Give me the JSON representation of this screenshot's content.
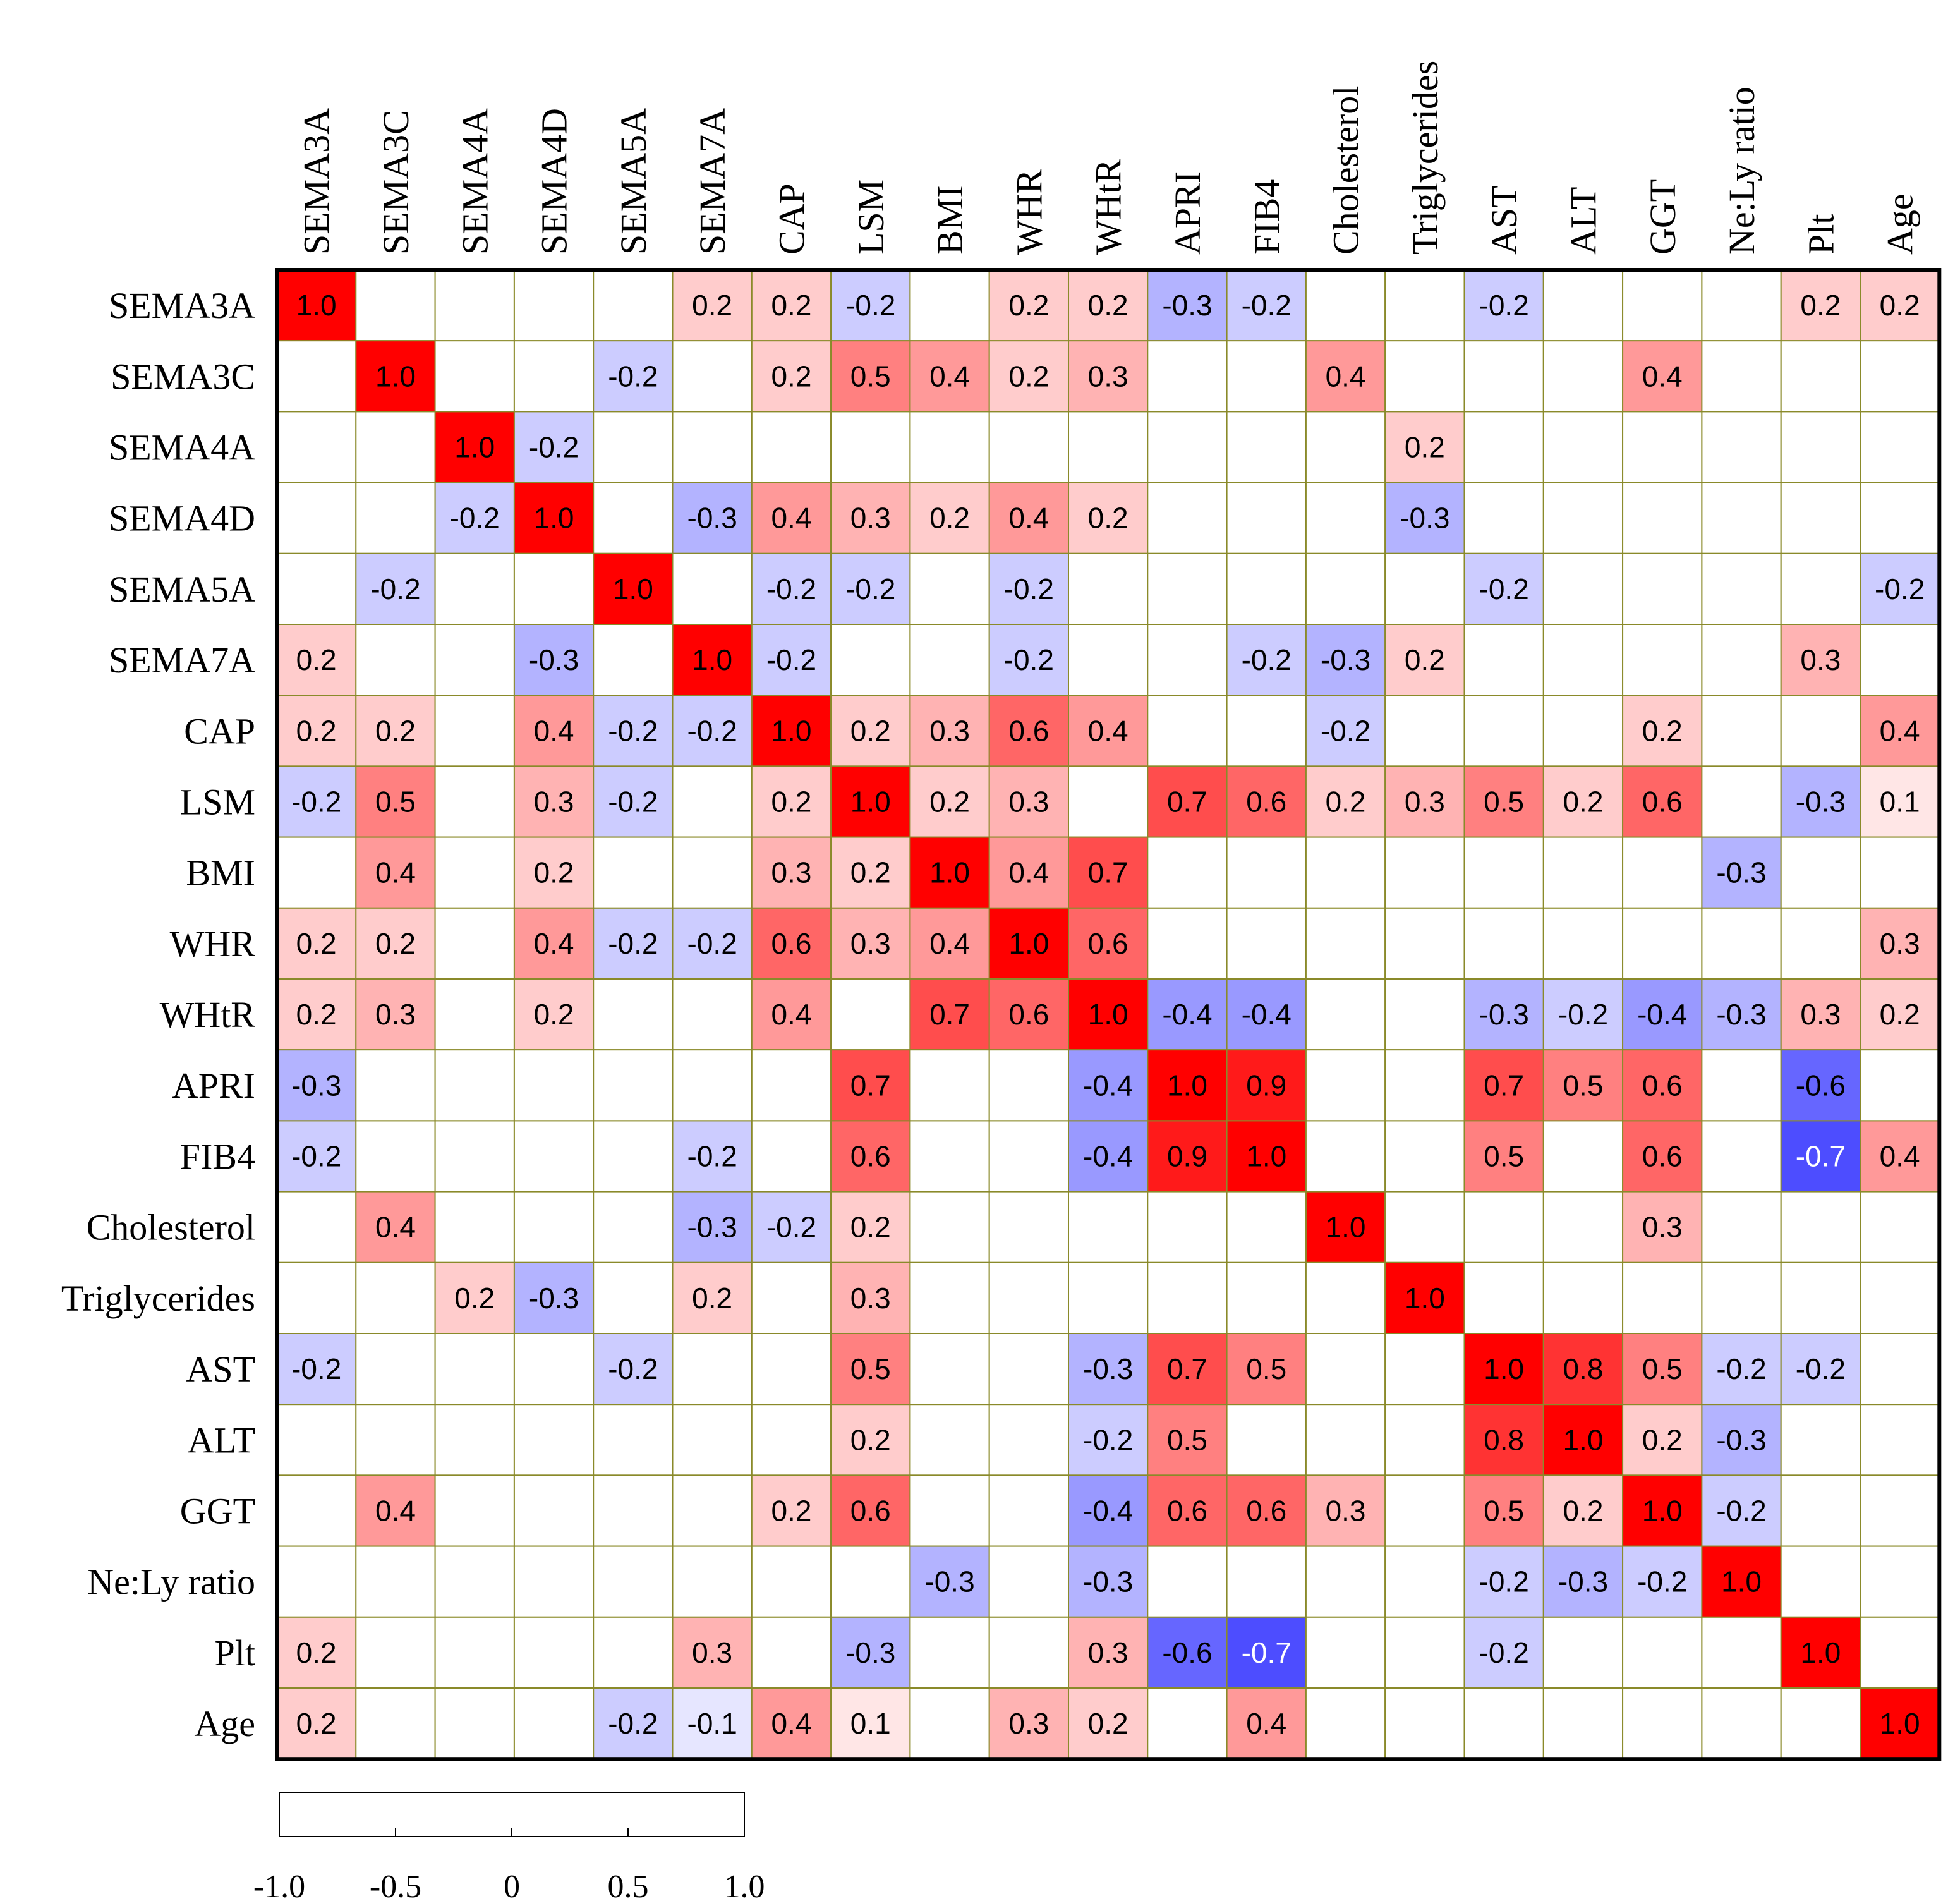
{
  "chart_data": {
    "type": "heatmap",
    "title": "",
    "variables": [
      "SEMA3A",
      "SEMA3C",
      "SEMA4A",
      "SEMA4D",
      "SEMA5A",
      "SEMA7A",
      "CAP",
      "LSM",
      "BMI",
      "WHR",
      "WHtR",
      "APRI",
      "FIB4",
      "Cholesterol",
      "Triglycerides",
      "AST",
      "ALT",
      "GGT",
      "Ne:Ly ratio",
      "Plt",
      "Age"
    ],
    "matrix": [
      [
        1.0,
        null,
        null,
        null,
        null,
        0.2,
        0.2,
        -0.2,
        null,
        0.2,
        0.2,
        -0.3,
        -0.2,
        null,
        null,
        -0.2,
        null,
        null,
        null,
        0.2,
        0.2
      ],
      [
        null,
        1.0,
        null,
        null,
        -0.2,
        null,
        0.2,
        0.5,
        0.4,
        0.2,
        0.3,
        null,
        null,
        0.4,
        null,
        null,
        null,
        0.4,
        null,
        null,
        null
      ],
      [
        null,
        null,
        1.0,
        -0.2,
        null,
        null,
        null,
        null,
        null,
        null,
        null,
        null,
        null,
        null,
        0.2,
        null,
        null,
        null,
        null,
        null,
        null
      ],
      [
        null,
        null,
        -0.2,
        1.0,
        null,
        -0.3,
        0.4,
        0.3,
        0.2,
        0.4,
        0.2,
        null,
        null,
        null,
        -0.3,
        null,
        null,
        null,
        null,
        null,
        null
      ],
      [
        null,
        -0.2,
        null,
        null,
        1.0,
        null,
        -0.2,
        -0.2,
        null,
        -0.2,
        null,
        null,
        null,
        null,
        null,
        -0.2,
        null,
        null,
        null,
        null,
        -0.2
      ],
      [
        0.2,
        null,
        null,
        -0.3,
        null,
        1.0,
        -0.2,
        null,
        null,
        -0.2,
        null,
        null,
        -0.2,
        -0.3,
        0.2,
        null,
        null,
        null,
        null,
        0.3,
        null
      ],
      [
        0.2,
        0.2,
        null,
        0.4,
        -0.2,
        -0.2,
        1.0,
        0.2,
        0.3,
        0.6,
        0.4,
        null,
        null,
        -0.2,
        null,
        null,
        null,
        0.2,
        null,
        null,
        0.4
      ],
      [
        -0.2,
        0.5,
        null,
        0.3,
        -0.2,
        null,
        0.2,
        1.0,
        0.2,
        0.3,
        null,
        0.7,
        0.6,
        0.2,
        0.3,
        0.5,
        0.2,
        0.6,
        null,
        -0.3,
        0.1
      ],
      [
        null,
        0.4,
        null,
        0.2,
        null,
        null,
        0.3,
        0.2,
        1.0,
        0.4,
        0.7,
        null,
        null,
        null,
        null,
        null,
        null,
        null,
        -0.3,
        null,
        null
      ],
      [
        0.2,
        0.2,
        null,
        0.4,
        -0.2,
        -0.2,
        0.6,
        0.3,
        0.4,
        1.0,
        0.6,
        null,
        null,
        null,
        null,
        null,
        null,
        null,
        null,
        null,
        0.3
      ],
      [
        0.2,
        0.3,
        null,
        0.2,
        null,
        null,
        0.4,
        null,
        0.7,
        0.6,
        1.0,
        -0.4,
        -0.4,
        null,
        null,
        -0.3,
        -0.2,
        -0.4,
        -0.3,
        0.3,
        0.2
      ],
      [
        -0.3,
        null,
        null,
        null,
        null,
        null,
        null,
        0.7,
        null,
        null,
        -0.4,
        1.0,
        0.9,
        null,
        null,
        0.7,
        0.5,
        0.6,
        null,
        -0.6,
        null
      ],
      [
        -0.2,
        null,
        null,
        null,
        null,
        -0.2,
        null,
        0.6,
        null,
        null,
        -0.4,
        0.9,
        1.0,
        null,
        null,
        0.5,
        null,
        0.6,
        null,
        -0.7,
        0.4
      ],
      [
        null,
        0.4,
        null,
        null,
        null,
        -0.3,
        -0.2,
        0.2,
        null,
        null,
        null,
        null,
        null,
        1.0,
        null,
        null,
        null,
        0.3,
        null,
        null,
        null
      ],
      [
        null,
        null,
        0.2,
        -0.3,
        null,
        0.2,
        null,
        0.3,
        null,
        null,
        null,
        null,
        null,
        null,
        1.0,
        null,
        null,
        null,
        null,
        null,
        null
      ],
      [
        -0.2,
        null,
        null,
        null,
        -0.2,
        null,
        null,
        0.5,
        null,
        null,
        -0.3,
        0.7,
        0.5,
        null,
        null,
        1.0,
        0.8,
        0.5,
        -0.2,
        -0.2,
        null
      ],
      [
        null,
        null,
        null,
        null,
        null,
        null,
        null,
        0.2,
        null,
        null,
        -0.2,
        0.5,
        null,
        null,
        null,
        0.8,
        1.0,
        0.2,
        -0.3,
        null,
        null
      ],
      [
        null,
        0.4,
        null,
        null,
        null,
        null,
        0.2,
        0.6,
        null,
        null,
        -0.4,
        0.6,
        0.6,
        0.3,
        null,
        0.5,
        0.2,
        1.0,
        -0.2,
        null,
        null
      ],
      [
        null,
        null,
        null,
        null,
        null,
        null,
        null,
        null,
        -0.3,
        null,
        -0.3,
        null,
        null,
        null,
        null,
        -0.2,
        -0.3,
        -0.2,
        1.0,
        null,
        null
      ],
      [
        0.2,
        null,
        null,
        null,
        null,
        0.3,
        null,
        -0.3,
        null,
        null,
        0.3,
        -0.6,
        -0.7,
        null,
        null,
        -0.2,
        null,
        null,
        null,
        1.0,
        null
      ],
      [
        0.2,
        null,
        null,
        null,
        -0.2,
        -0.1,
        0.4,
        0.1,
        null,
        0.3,
        0.2,
        null,
        0.4,
        null,
        null,
        null,
        null,
        null,
        null,
        null,
        1.0
      ]
    ],
    "colorbar": {
      "range": [
        -1.0,
        1.0
      ],
      "ticks": [
        -1.0,
        -0.5,
        0,
        0.5,
        1.0
      ],
      "tick_labels": [
        "-1.0",
        "-0.5",
        "0",
        "0.5",
        "1.0"
      ]
    },
    "colors": {
      "positive": "#ff0000",
      "negative": "#0000ff",
      "neutral": "#ffffff",
      "grid": "#8a8a2a",
      "text": "#000000"
    }
  }
}
